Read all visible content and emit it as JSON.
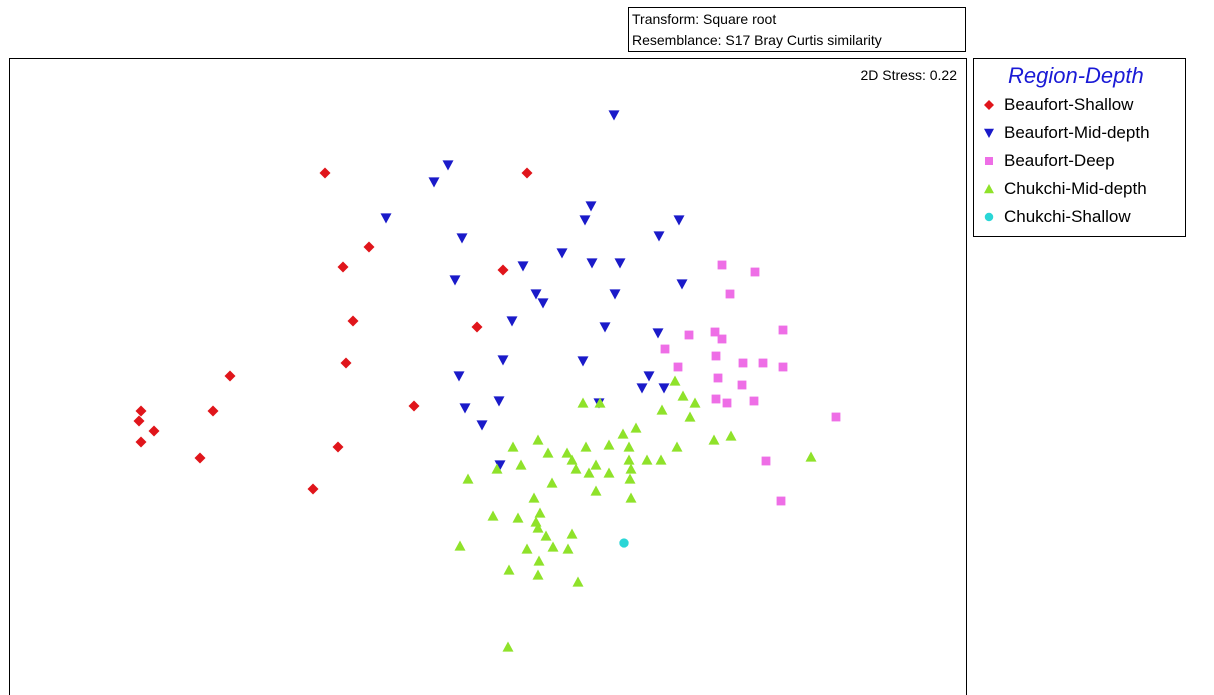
{
  "header": {
    "transform": "Transform: Square root",
    "resemblance": "Resemblance: S17 Bray Curtis similarity"
  },
  "plot": {
    "stress": "2D Stress: 0.22"
  },
  "legend": {
    "title": "Region-Depth",
    "items": [
      {
        "label": "Beaufort-Shallow",
        "marker": "diamond",
        "color": "#e0151b"
      },
      {
        "label": "Beaufort-Mid-depth",
        "marker": "triangle-down",
        "color": "#1a1ac9"
      },
      {
        "label": "Beaufort-Deep",
        "marker": "square",
        "color": "#ee6ee6"
      },
      {
        "label": "Chukchi-Mid-depth",
        "marker": "triangle-up",
        "color": "#8fe22a"
      },
      {
        "label": "Chukchi-Shallow",
        "marker": "circle",
        "color": "#2ad6d6"
      }
    ]
  },
  "chart_data": {
    "type": "scatter",
    "title": "",
    "xlabel": "",
    "ylabel": "",
    "xlim": [
      0,
      958
    ],
    "ylim": [
      0,
      637
    ],
    "grid": false,
    "legend_position": "right",
    "series": [
      {
        "name": "Beaufort-Shallow",
        "marker": "diamond",
        "color": "#e0151b",
        "points": [
          [
            316,
            115
          ],
          [
            518,
            115
          ],
          [
            360,
            189
          ],
          [
            334,
            209
          ],
          [
            494,
            212
          ],
          [
            468,
            269
          ],
          [
            344,
            263
          ],
          [
            337,
            305
          ],
          [
            221,
            318
          ],
          [
            132,
            353
          ],
          [
            204,
            353
          ],
          [
            405,
            348
          ],
          [
            130,
            363
          ],
          [
            145,
            373
          ],
          [
            132,
            384
          ],
          [
            329,
            389
          ],
          [
            191,
            400
          ],
          [
            304,
            431
          ]
        ]
      },
      {
        "name": "Beaufort-Mid-depth",
        "marker": "triangle-down",
        "color": "#1a1ac9",
        "points": [
          [
            605,
            57
          ],
          [
            439,
            107
          ],
          [
            425,
            124
          ],
          [
            582,
            148
          ],
          [
            377,
            160
          ],
          [
            576,
            162
          ],
          [
            670,
            162
          ],
          [
            453,
            180
          ],
          [
            650,
            178
          ],
          [
            553,
            195
          ],
          [
            583,
            205
          ],
          [
            611,
            205
          ],
          [
            446,
            222
          ],
          [
            514,
            208
          ],
          [
            673,
            226
          ],
          [
            527,
            236
          ],
          [
            606,
            236
          ],
          [
            534,
            245
          ],
          [
            503,
            263
          ],
          [
            596,
            269
          ],
          [
            649,
            275
          ],
          [
            494,
            302
          ],
          [
            574,
            303
          ],
          [
            450,
            318
          ],
          [
            640,
            318
          ],
          [
            655,
            330
          ],
          [
            633,
            330
          ],
          [
            456,
            350
          ],
          [
            490,
            343
          ],
          [
            590,
            345
          ],
          [
            473,
            367
          ],
          [
            491,
            407
          ]
        ]
      },
      {
        "name": "Beaufort-Deep",
        "marker": "square",
        "color": "#ee6ee6",
        "points": [
          [
            713,
            207
          ],
          [
            746,
            214
          ],
          [
            721,
            236
          ],
          [
            680,
            277
          ],
          [
            706,
            274
          ],
          [
            713,
            281
          ],
          [
            774,
            272
          ],
          [
            656,
            291
          ],
          [
            707,
            298
          ],
          [
            669,
            309
          ],
          [
            734,
            305
          ],
          [
            754,
            305
          ],
          [
            774,
            309
          ],
          [
            709,
            320
          ],
          [
            733,
            327
          ],
          [
            707,
            341
          ],
          [
            718,
            345
          ],
          [
            745,
            343
          ],
          [
            827,
            359
          ],
          [
            757,
            403
          ],
          [
            772,
            443
          ]
        ]
      },
      {
        "name": "Chukchi-Mid-depth",
        "marker": "triangle-up",
        "color": "#8fe22a",
        "points": [
          [
            666,
            323
          ],
          [
            674,
            338
          ],
          [
            686,
            345
          ],
          [
            653,
            352
          ],
          [
            574,
            345
          ],
          [
            591,
            345
          ],
          [
            627,
            370
          ],
          [
            614,
            376
          ],
          [
            681,
            359
          ],
          [
            705,
            382
          ],
          [
            722,
            378
          ],
          [
            529,
            382
          ],
          [
            620,
            389
          ],
          [
            668,
            389
          ],
          [
            504,
            389
          ],
          [
            558,
            395
          ],
          [
            577,
            389
          ],
          [
            600,
            387
          ],
          [
            638,
            402
          ],
          [
            652,
            402
          ],
          [
            620,
            402
          ],
          [
            587,
            407
          ],
          [
            622,
            411
          ],
          [
            802,
            399
          ],
          [
            539,
            395
          ],
          [
            563,
            402
          ],
          [
            512,
            407
          ],
          [
            488,
            411
          ],
          [
            567,
            411
          ],
          [
            600,
            415
          ],
          [
            580,
            415
          ],
          [
            543,
            425
          ],
          [
            459,
            421
          ],
          [
            621,
            421
          ],
          [
            587,
            433
          ],
          [
            525,
            440
          ],
          [
            622,
            440
          ],
          [
            531,
            455
          ],
          [
            484,
            458
          ],
          [
            509,
            460
          ],
          [
            527,
            464
          ],
          [
            563,
            476
          ],
          [
            529,
            470
          ],
          [
            537,
            478
          ],
          [
            559,
            491
          ],
          [
            451,
            488
          ],
          [
            518,
            491
          ],
          [
            544,
            489
          ],
          [
            530,
            503
          ],
          [
            500,
            512
          ],
          [
            529,
            517
          ],
          [
            569,
            524
          ],
          [
            499,
            589
          ]
        ]
      },
      {
        "name": "Chukchi-Shallow",
        "marker": "circle",
        "color": "#2ad6d6",
        "points": [
          [
            615,
            485
          ]
        ]
      }
    ]
  }
}
